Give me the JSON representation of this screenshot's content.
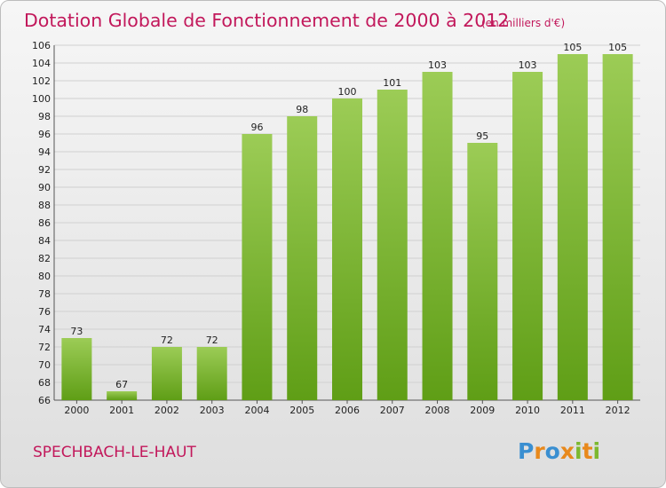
{
  "commune_name": "SPECHBACH-LE-HAUT",
  "brand": {
    "letters": [
      "P",
      "r",
      "o",
      "x",
      "i",
      "t",
      "i"
    ],
    "colors": [
      "#3a8fd1",
      "#e8891c",
      "#3a8fd1",
      "#e8891c",
      "#7cb82f",
      "#e8891c",
      "#7cb82f"
    ]
  },
  "colors": {
    "bar_top": "#9ccc56",
    "bar_bottom": "#5f9e16",
    "title": "#c2185b"
  },
  "chart_data": {
    "type": "bar",
    "title": "Dotation Globale de Fonctionnement de 2000 à 2012",
    "subtitle": "(en milliers d'€)",
    "categories": [
      "2000",
      "2001",
      "2002",
      "2003",
      "2004",
      "2005",
      "2006",
      "2007",
      "2008",
      "2009",
      "2010",
      "2011",
      "2012"
    ],
    "values": [
      73,
      67,
      72,
      72,
      96,
      98,
      100,
      101,
      103,
      95,
      103,
      105,
      105
    ],
    "ylim": [
      66,
      106
    ],
    "ytick_step": 2,
    "xlabel": "",
    "ylabel": "",
    "grid": true
  }
}
